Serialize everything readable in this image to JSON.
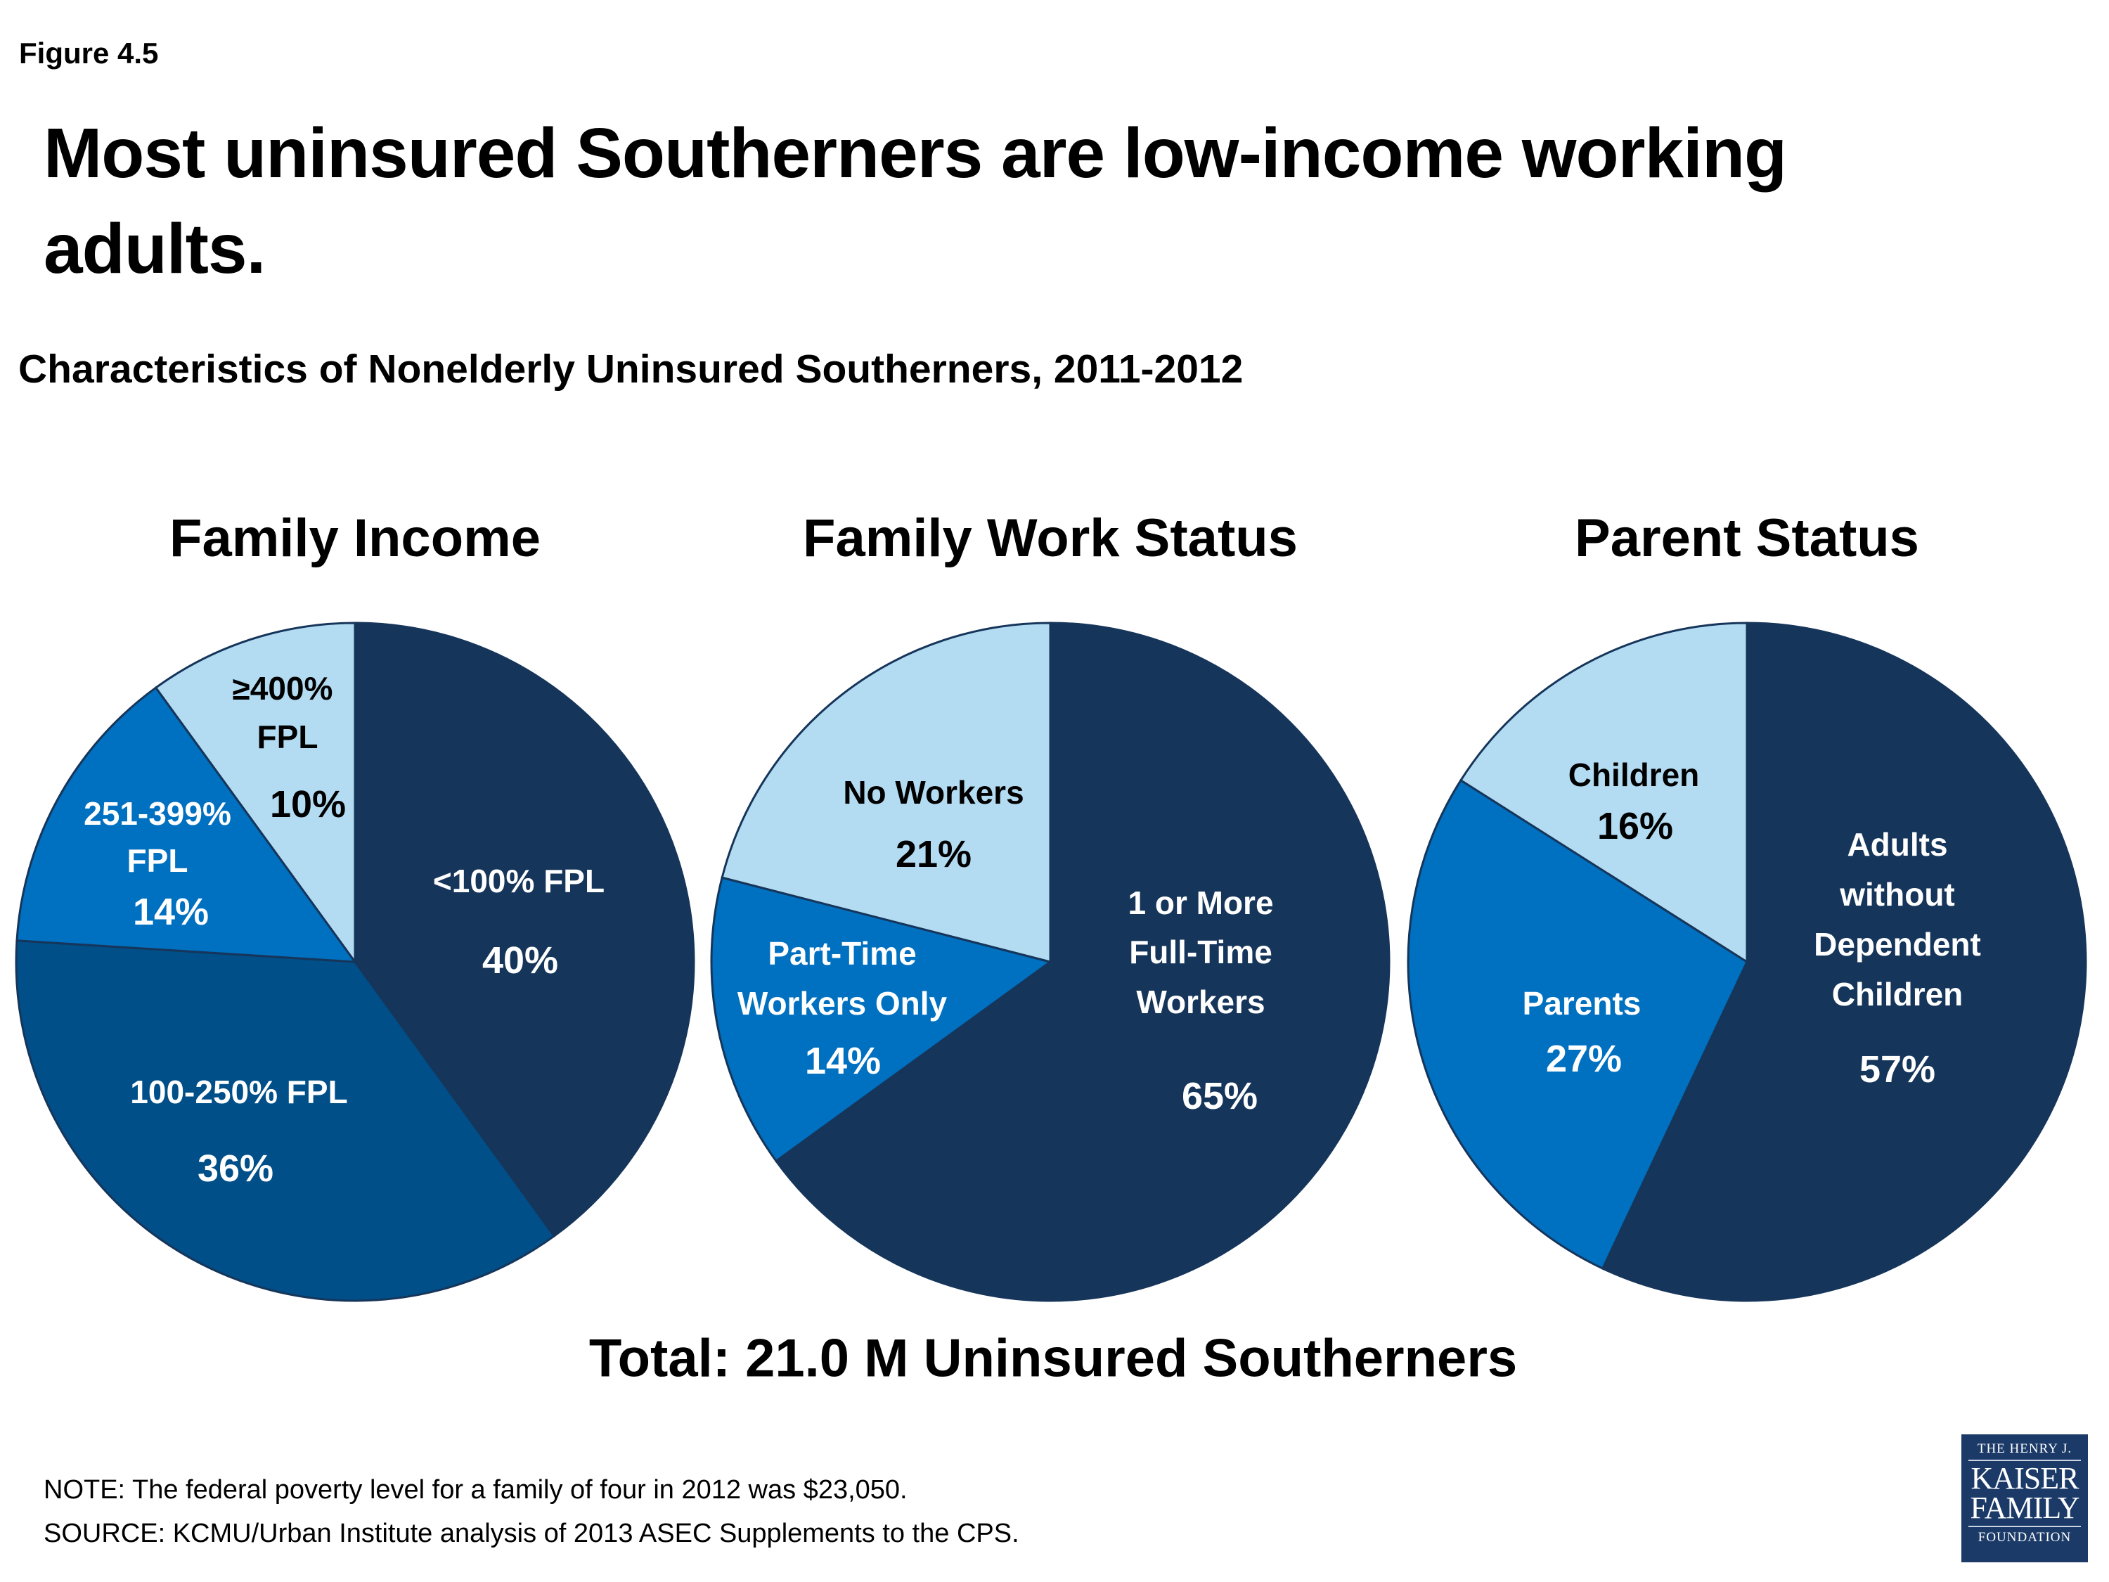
{
  "header": {
    "figure_label": "Figure 4.5",
    "title_line1": "Most uninsured Southerners are low-income working",
    "title_line2": "adults.",
    "subtitle": "Characteristics of Nonelderly Uninsured Southerners, 2011-2012"
  },
  "colors": {
    "navy": "#16355a",
    "dark_blue": "#004f88",
    "blue": "#0070c0",
    "light_blue": "#b3dcf2"
  },
  "chart_data": [
    {
      "type": "pie",
      "title": "Family Income",
      "categories": [
        "<100% FPL",
        "100-250% FPL",
        "251-399% FPL",
        "≥400% FPL"
      ],
      "values": [
        40,
        36,
        14,
        10
      ],
      "colors": [
        "#16355a",
        "#004f88",
        "#0070c0",
        "#b3dcf2"
      ],
      "labels": [
        {
          "lines": [
            "<100% FPL"
          ],
          "pct": "40%"
        },
        {
          "lines": [
            "100-250% FPL"
          ],
          "pct": "36%"
        },
        {
          "lines": [
            "251-399%",
            "FPL"
          ],
          "pct": "14%"
        },
        {
          "lines": [
            "≥400%",
            "FPL"
          ],
          "pct": "10%"
        }
      ]
    },
    {
      "type": "pie",
      "title": "Family Work Status",
      "categories": [
        "1 or More Full-Time Workers",
        "Part-Time Workers Only",
        "No Workers"
      ],
      "values": [
        65,
        14,
        21
      ],
      "colors": [
        "#16355a",
        "#0070c0",
        "#b3dcf2"
      ],
      "labels": [
        {
          "lines": [
            "1 or More",
            "Full-Time",
            "Workers"
          ],
          "pct": "65%"
        },
        {
          "lines": [
            "Part-Time",
            "Workers Only"
          ],
          "pct": "14%"
        },
        {
          "lines": [
            "No Workers"
          ],
          "pct": "21%"
        }
      ]
    },
    {
      "type": "pie",
      "title": "Parent Status",
      "categories": [
        "Adults without Dependent Children",
        "Parents",
        "Children"
      ],
      "values": [
        57,
        27,
        16
      ],
      "colors": [
        "#16355a",
        "#0070c0",
        "#b3dcf2"
      ],
      "labels": [
        {
          "lines": [
            "Adults",
            "without",
            "Dependent",
            "Children"
          ],
          "pct": "57%"
        },
        {
          "lines": [
            "Parents"
          ],
          "pct": "27%"
        },
        {
          "lines": [
            "Children"
          ],
          "pct": "16%"
        }
      ]
    }
  ],
  "total": "Total: 21.0 M Uninsured Southerners",
  "footer": {
    "note": "NOTE: The federal poverty level for a family of four in 2012 was $23,050.",
    "source": "SOURCE: KCMU/Urban Institute analysis of 2013 ASEC Supplements to the CPS."
  },
  "logo": {
    "line1": "THE HENRY J.",
    "line2": "KAISER",
    "line3": "FAMILY",
    "line4": "FOUNDATION"
  }
}
